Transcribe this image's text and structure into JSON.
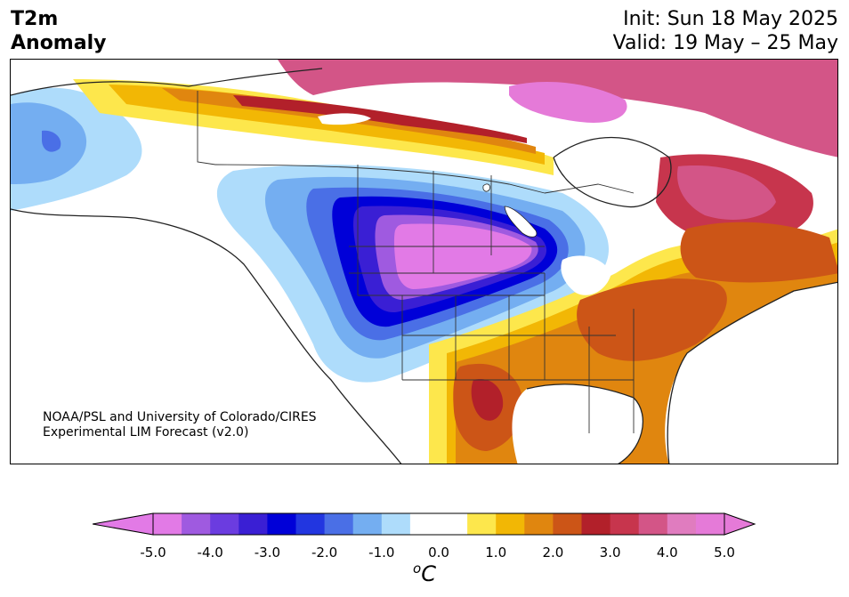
{
  "header": {
    "title_line1": "T2m",
    "title_line2": "Anomaly",
    "init": "Init: Sun 18 May 2025",
    "valid": "Valid: 19 May – 25 May"
  },
  "credit": {
    "line1": "NOAA/PSL and University of Colorado/CIRES",
    "line2": "Experimental LIM Forecast (v2.0)"
  },
  "colorbar": {
    "tick_labels": [
      "-5.0",
      "-4.0",
      "-3.0",
      "-2.0",
      "-1.0",
      "0.0",
      "1.0",
      "2.0",
      "3.0",
      "4.0",
      "5.0"
    ],
    "unit_superscript": "o",
    "unit": "C",
    "colors": [
      "#e27ae6",
      "#9f5ae0",
      "#6b3ce0",
      "#3a1fd4",
      "#0000d8",
      "#2236e0",
      "#4a6fe6",
      "#74aef1",
      "#aedcfb",
      "#ffffff",
      "#ffffff",
      "#fde74c",
      "#f2b705",
      "#e0860f",
      "#cc5517",
      "#b2202a",
      "#c7354d",
      "#d35587",
      "#e07cbf",
      "#e57ad8"
    ]
  },
  "map": {
    "colors": {
      "ocean": "#ffffff",
      "border": "#333333",
      "coast": "#222222"
    }
  }
}
